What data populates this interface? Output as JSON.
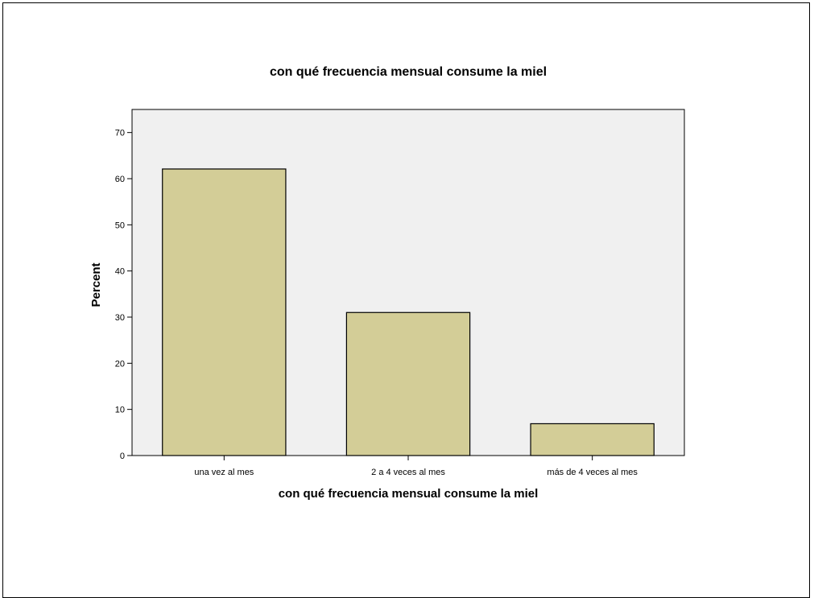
{
  "chart_data": {
    "type": "bar",
    "title": "con qué frecuencia mensual consume la miel",
    "xlabel": "con qué frecuencia mensual consume la miel",
    "ylabel": "Percent",
    "categories": [
      "una vez al mes",
      "2 a 4 veces al mes",
      "más de 4 veces al mes"
    ],
    "values": [
      62.1,
      31.0,
      6.9
    ],
    "ylim": [
      0,
      75
    ],
    "yticks": [
      0,
      10,
      20,
      30,
      40,
      50,
      60,
      70
    ],
    "grid": false,
    "colors": {
      "bar_fill": "#d3cd97",
      "bar_stroke": "#000000",
      "plot_background": "#f0f0f0",
      "axis": "#000000"
    }
  }
}
